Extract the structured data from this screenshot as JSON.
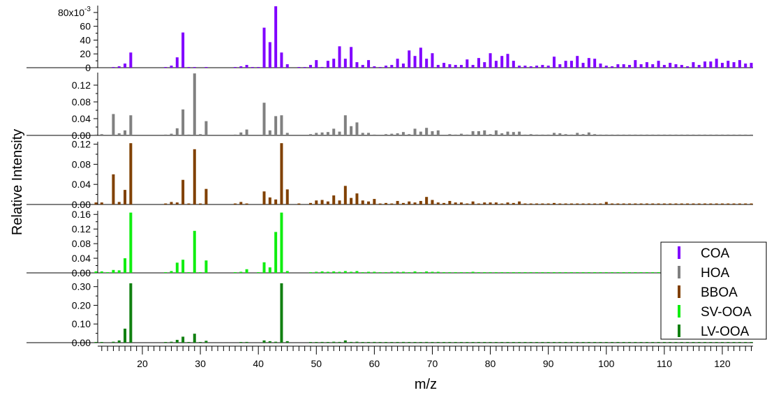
{
  "chart_data": {
    "type": "bar",
    "xlabel": "m/z",
    "ylabel": "Relative Intensity",
    "xlim": [
      12,
      125
    ],
    "x_ticks": [
      20,
      30,
      40,
      50,
      60,
      70,
      80,
      90,
      100,
      110,
      120
    ],
    "legend_position": "bottom-right",
    "panels": [
      {
        "name": "COA",
        "color": "#8000ff",
        "ylim": [
          0,
          0.09
        ],
        "ytick_values": [
          0,
          0.02,
          0.04,
          0.06,
          0.08
        ],
        "ytick_labels": [
          "0",
          "20",
          "40",
          "60",
          "80x10"
        ],
        "ytick_exponent": "-3",
        "mz": [
          15,
          16,
          17,
          18,
          24,
          25,
          26,
          27,
          28,
          29,
          31,
          36,
          37,
          38,
          39,
          40,
          41,
          42,
          43,
          44,
          45,
          47,
          48,
          49,
          50,
          51,
          52,
          53,
          54,
          55,
          56,
          57,
          58,
          59,
          60,
          61,
          62,
          63,
          64,
          65,
          66,
          67,
          68,
          69,
          70,
          71,
          72,
          73,
          74,
          75,
          76,
          77,
          78,
          79,
          80,
          81,
          82,
          83,
          84,
          85,
          86,
          87,
          88,
          89,
          90,
          91,
          92,
          93,
          94,
          95,
          96,
          97,
          98,
          99,
          100,
          101,
          102,
          103,
          104,
          105,
          106,
          107,
          108,
          109,
          110,
          111,
          112,
          113,
          114,
          115,
          116,
          117,
          118,
          119,
          120,
          121,
          122,
          123,
          124,
          125
        ],
        "values": [
          0.001,
          0.002,
          0.006,
          0.022,
          0.001,
          0.003,
          0.015,
          0.051,
          0.001,
          0.001,
          0.001,
          0.001,
          0.002,
          0.004,
          0.001,
          0.001,
          0.058,
          0.037,
          0.089,
          0.022,
          0.005,
          0.001,
          0.001,
          0.004,
          0.011,
          0.001,
          0.01,
          0.013,
          0.031,
          0.013,
          0.03,
          0.008,
          0.004,
          0.011,
          0.002,
          0.001,
          0.003,
          0.004,
          0.013,
          0.006,
          0.025,
          0.017,
          0.029,
          0.013,
          0.021,
          0.004,
          0.007,
          0.005,
          0.004,
          0.004,
          0.012,
          0.004,
          0.014,
          0.008,
          0.021,
          0.01,
          0.017,
          0.02,
          0.01,
          0.003,
          0.003,
          0.002,
          0.003,
          0.004,
          0.003,
          0.016,
          0.005,
          0.01,
          0.01,
          0.017,
          0.007,
          0.014,
          0.013,
          0.006,
          0.003,
          0.002,
          0.005,
          0.005,
          0.004,
          0.011,
          0.005,
          0.008,
          0.005,
          0.01,
          0.004,
          0.007,
          0.005,
          0.004,
          0.002,
          0.008,
          0.004,
          0.009,
          0.009,
          0.013,
          0.007,
          0.01,
          0.008,
          0.011,
          0.006,
          0.007
        ]
      },
      {
        "name": "HOA",
        "color": "#808080",
        "ylim": [
          0,
          0.15
        ],
        "ytick_values": [
          0,
          0.04,
          0.08,
          0.12
        ],
        "ytick_labels": [
          "0.00",
          "0.04",
          "0.08",
          "0.12"
        ],
        "mz": [
          12,
          13,
          15,
          16,
          17,
          18,
          24,
          25,
          26,
          27,
          28,
          29,
          30,
          31,
          36,
          37,
          38,
          41,
          42,
          43,
          44,
          45,
          49,
          50,
          51,
          52,
          53,
          54,
          55,
          56,
          57,
          58,
          59,
          60,
          62,
          63,
          64,
          65,
          66,
          67,
          68,
          69,
          70,
          71,
          73,
          74,
          75,
          76,
          77,
          78,
          79,
          80,
          81,
          82,
          83,
          84,
          85,
          86,
          87,
          88,
          89,
          90,
          91,
          92,
          93,
          94,
          95,
          96,
          97,
          98,
          99,
          100,
          101,
          102,
          103,
          104,
          105,
          106,
          107,
          108,
          109,
          110,
          111,
          112,
          113,
          114,
          115,
          116,
          117,
          118,
          119,
          120,
          121,
          122,
          123,
          124,
          125
        ],
        "values": [
          0.002,
          0.003,
          0.051,
          0.005,
          0.012,
          0.048,
          0.002,
          0.004,
          0.017,
          0.062,
          0.002,
          0.148,
          0.003,
          0.034,
          0.002,
          0.007,
          0.014,
          0.078,
          0.012,
          0.046,
          0.048,
          0.006,
          0.003,
          0.006,
          0.007,
          0.008,
          0.016,
          0.009,
          0.048,
          0.022,
          0.031,
          0.006,
          0.006,
          0.002,
          0.003,
          0.004,
          0.005,
          0.008,
          0.003,
          0.016,
          0.009,
          0.018,
          0.01,
          0.012,
          0.003,
          0.002,
          0.004,
          0.002,
          0.01,
          0.01,
          0.012,
          0.003,
          0.012,
          0.005,
          0.009,
          0.008,
          0.009,
          0.002,
          0.003,
          0.002,
          0.002,
          0.002,
          0.006,
          0.005,
          0.003,
          0.002,
          0.006,
          0.003,
          0.007,
          0.003,
          0.002,
          0.002,
          0.002,
          0.002,
          0.002,
          0.002,
          0.002,
          0.002,
          0.002,
          0.002,
          0.002,
          0.002,
          0.002,
          0.002,
          0.002,
          0.002,
          0.002,
          0.002,
          0.002,
          0.002,
          0.002,
          0.002,
          0.002,
          0.002,
          0.002,
          0.002,
          0.002
        ]
      },
      {
        "name": "BBOA",
        "color": "#804000",
        "ylim": [
          0,
          0.125
        ],
        "ytick_values": [
          0,
          0.04,
          0.08,
          0.12
        ],
        "ytick_labels": [
          "0.00",
          "0.04",
          "0.08",
          "0.12"
        ],
        "mz": [
          12,
          13,
          15,
          16,
          17,
          18,
          24,
          25,
          26,
          27,
          28,
          29,
          30,
          31,
          36,
          37,
          38,
          41,
          42,
          43,
          44,
          45,
          47,
          49,
          50,
          51,
          52,
          53,
          54,
          55,
          56,
          57,
          58,
          59,
          60,
          61,
          62,
          63,
          64,
          65,
          66,
          67,
          68,
          69,
          70,
          71,
          72,
          73,
          74,
          75,
          76,
          77,
          78,
          79,
          80,
          81,
          82,
          83,
          84,
          85,
          86,
          87,
          88,
          89,
          90,
          91,
          92,
          93,
          94,
          95,
          96,
          97,
          98,
          99,
          100,
          101,
          102,
          103,
          104,
          105,
          106,
          107,
          108,
          109,
          110,
          111,
          112,
          113,
          114,
          115,
          116,
          117,
          118,
          119,
          120,
          121,
          122,
          123,
          124,
          125
        ],
        "values": [
          0.004,
          0.004,
          0.06,
          0.005,
          0.029,
          0.122,
          0.002,
          0.005,
          0.004,
          0.049,
          0.002,
          0.11,
          0.002,
          0.031,
          0.002,
          0.005,
          0.002,
          0.026,
          0.014,
          0.01,
          0.122,
          0.03,
          0.002,
          0.003,
          0.008,
          0.009,
          0.006,
          0.018,
          0.008,
          0.037,
          0.013,
          0.022,
          0.008,
          0.006,
          0.011,
          0.002,
          0.003,
          0.002,
          0.007,
          0.003,
          0.006,
          0.004,
          0.007,
          0.015,
          0.009,
          0.004,
          0.003,
          0.007,
          0.004,
          0.004,
          0.002,
          0.006,
          0.002,
          0.004,
          0.004,
          0.004,
          0.002,
          0.004,
          0.003,
          0.006,
          0.002,
          0.002,
          0.002,
          0.002,
          0.002,
          0.003,
          0.002,
          0.002,
          0.002,
          0.002,
          0.002,
          0.002,
          0.002,
          0.002,
          0.005,
          0.002,
          0.002,
          0.002,
          0.002,
          0.002,
          0.002,
          0.002,
          0.002,
          0.002,
          0.002,
          0.002,
          0.002,
          0.002,
          0.002,
          0.002,
          0.002,
          0.002,
          0.002,
          0.002,
          0.002,
          0.002,
          0.002,
          0.002,
          0.002,
          0.002,
          0.002,
          0.002,
          0.006
        ]
      },
      {
        "name": "SV-OOA",
        "color": "#10ee10",
        "ylim": [
          0,
          0.17
        ],
        "ytick_values": [
          0,
          0.04,
          0.08,
          0.12,
          0.16
        ],
        "ytick_labels": [
          "0.00",
          "0.04",
          "0.08",
          "0.12",
          "0.16"
        ],
        "mz": [
          12,
          13,
          14,
          15,
          16,
          17,
          18,
          24,
          25,
          26,
          27,
          28,
          29,
          30,
          31,
          36,
          37,
          38,
          40,
          41,
          42,
          43,
          44,
          45,
          49,
          50,
          51,
          52,
          53,
          54,
          55,
          56,
          57,
          58,
          59,
          60,
          61,
          62,
          63,
          64,
          65,
          66,
          67,
          68,
          69,
          70,
          71,
          72,
          73,
          74,
          75,
          76,
          77,
          78,
          79,
          80,
          81,
          82,
          83,
          84,
          85,
          86,
          87,
          88,
          89,
          90,
          91,
          92,
          93,
          94,
          95,
          96,
          97,
          98,
          99,
          100,
          101,
          102,
          103,
          104,
          105,
          106,
          107,
          108,
          109,
          110,
          111,
          112,
          113,
          114,
          115,
          116,
          117,
          118,
          119,
          120,
          121,
          122,
          123,
          124,
          125
        ],
        "values": [
          0.004,
          0.004,
          0.002,
          0.008,
          0.007,
          0.04,
          0.165,
          0.002,
          0.005,
          0.028,
          0.036,
          0.002,
          0.115,
          0.002,
          0.034,
          0.002,
          0.003,
          0.01,
          0.002,
          0.029,
          0.015,
          0.112,
          0.165,
          0.005,
          0.002,
          0.003,
          0.004,
          0.003,
          0.004,
          0.003,
          0.005,
          0.003,
          0.005,
          0.002,
          0.003,
          0.003,
          0.002,
          0.002,
          0.003,
          0.003,
          0.003,
          0.002,
          0.004,
          0.002,
          0.004,
          0.003,
          0.003,
          0.002,
          0.002,
          0.002,
          0.002,
          0.002,
          0.003,
          0.002,
          0.002,
          0.002,
          0.002,
          0.002,
          0.002,
          0.002,
          0.002,
          0.002,
          0.002,
          0.002,
          0.002,
          0.002,
          0.002,
          0.002,
          0.002,
          0.002,
          0.002,
          0.002,
          0.002,
          0.002,
          0.002,
          0.002,
          0.002,
          0.002,
          0.002,
          0.002,
          0.002,
          0.002,
          0.002,
          0.002,
          0.002,
          0.002,
          0.002,
          0.002,
          0.002,
          0.002,
          0.002,
          0.002,
          0.002,
          0.002,
          0.002,
          0.002,
          0.002,
          0.002,
          0.002,
          0.002,
          0.002
        ]
      },
      {
        "name": "LV-OOA",
        "color": "#108010",
        "ylim": [
          0,
          0.34
        ],
        "ytick_values": [
          0,
          0.1,
          0.2,
          0.3
        ],
        "ytick_labels": [
          "0.00",
          "0.10",
          "0.20",
          "0.30"
        ],
        "mz": [
          12,
          13,
          15,
          16,
          17,
          18,
          24,
          25,
          26,
          27,
          28,
          29,
          30,
          31,
          37,
          38,
          41,
          42,
          43,
          44,
          45,
          49,
          50,
          51,
          52,
          53,
          54,
          55,
          56,
          57,
          58,
          59,
          60,
          61,
          62,
          63,
          64,
          65,
          66,
          67,
          68,
          69,
          70,
          71,
          72,
          73,
          74,
          75,
          76,
          77,
          78,
          79,
          80,
          81,
          82,
          83,
          84,
          85,
          86,
          87,
          88,
          89,
          90,
          91,
          92,
          93,
          94,
          95,
          96,
          97,
          98,
          99,
          100,
          101,
          102,
          103,
          104,
          105,
          106,
          107,
          108,
          109,
          110,
          111,
          112,
          113,
          114,
          115,
          116,
          117,
          118,
          119,
          120,
          121,
          122,
          123,
          124,
          125
        ],
        "values": [
          0.002,
          0.002,
          0.005,
          0.012,
          0.075,
          0.318,
          0.002,
          0.005,
          0.015,
          0.032,
          0.002,
          0.048,
          0.002,
          0.01,
          0.002,
          0.004,
          0.012,
          0.008,
          0.005,
          0.318,
          0.008,
          0.002,
          0.003,
          0.004,
          0.003,
          0.005,
          0.004,
          0.012,
          0.004,
          0.005,
          0.003,
          0.003,
          0.004,
          0.002,
          0.002,
          0.003,
          0.003,
          0.004,
          0.002,
          0.003,
          0.003,
          0.004,
          0.003,
          0.003,
          0.002,
          0.002,
          0.002,
          0.002,
          0.003,
          0.003,
          0.002,
          0.002,
          0.002,
          0.002,
          0.002,
          0.002,
          0.002,
          0.002,
          0.002,
          0.002,
          0.002,
          0.002,
          0.002,
          0.003,
          0.002,
          0.002,
          0.002,
          0.002,
          0.002,
          0.002,
          0.002,
          0.002,
          0.002,
          0.002,
          0.002,
          0.002,
          0.002,
          0.002,
          0.002,
          0.002,
          0.002,
          0.002,
          0.002,
          0.002,
          0.002,
          0.002,
          0.002,
          0.002,
          0.002,
          0.002,
          0.002,
          0.002,
          0.002,
          0.002,
          0.002,
          0.002,
          0.002,
          0.002,
          0.002,
          0.002
        ]
      }
    ]
  }
}
